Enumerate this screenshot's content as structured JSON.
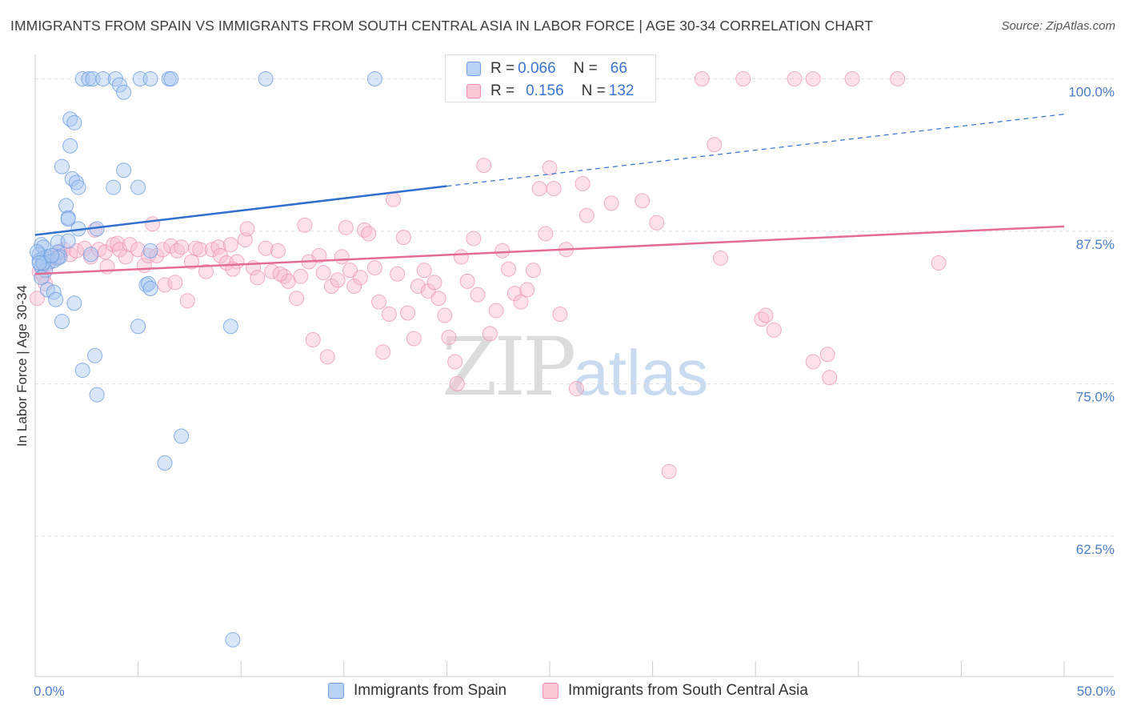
{
  "title": "IMMIGRANTS FROM SPAIN VS IMMIGRANTS FROM SOUTH CENTRAL ASIA IN LABOR FORCE | AGE 30-34 CORRELATION CHART",
  "source": "Source: ZipAtlas.com",
  "watermark": {
    "zip": "ZIP",
    "atlas": "atlas"
  },
  "colors": {
    "blue_fill": "#a9c7f0",
    "blue_stroke": "#6d9ee3",
    "blue_line": "#2f6fd0",
    "pink_fill": "#f8bdd0",
    "pink_stroke": "#ec8fad",
    "pink_line": "#e46b95",
    "grid": "#dddddd",
    "tick_text": "#4a7cc9"
  },
  "legend": {
    "rows": [
      {
        "r_label": "R = ",
        "r_value": "0.066",
        "n_label": "N = ",
        "n_value": "66",
        "series": "blue"
      },
      {
        "r_label": "R = ",
        "r_value": "0.156",
        "n_label": "N = ",
        "n_value": "132",
        "series": "pink"
      }
    ]
  },
  "bottom_legend": {
    "spain": "Immigrants from Spain",
    "asia": "Immigrants from South Central Asia"
  },
  "chart_data": {
    "type": "scatter",
    "title": "IMMIGRANTS FROM SPAIN VS IMMIGRANTS FROM SOUTH CENTRAL ASIA IN LABOR FORCE | AGE 30-34 CORRELATION CHART",
    "ylabel": "In Labor Force | Age 30-34",
    "xlabel": "",
    "xlim": [
      0,
      50
    ],
    "ylim": [
      51,
      102
    ],
    "x_ticks": [
      {
        "value": 0,
        "label": "0.0%"
      },
      {
        "value": 50,
        "label": "50.0%"
      }
    ],
    "x_minor_ticks": [
      0,
      5,
      10,
      15,
      20,
      25,
      30,
      35,
      40,
      45,
      50
    ],
    "y_ticks": [
      {
        "value": 100,
        "label": "100.0%"
      },
      {
        "value": 87.5,
        "label": "87.5%"
      },
      {
        "value": 75,
        "label": "75.0%"
      },
      {
        "value": 62.5,
        "label": "62.5%"
      }
    ],
    "grid": true,
    "series": [
      {
        "name": "Immigrants from Spain",
        "color": "blue",
        "trend": {
          "x0": 0,
          "y0": 87.2,
          "x1": 20,
          "y1": 91.2,
          "dash_x1": 50,
          "dash_y1": 97.1
        },
        "points": [
          [
            2.3,
            100
          ],
          [
            2.6,
            100
          ],
          [
            2.8,
            100
          ],
          [
            3.3,
            100
          ],
          [
            3.9,
            100
          ],
          [
            5.1,
            100
          ],
          [
            5.6,
            100
          ],
          [
            6.5,
            100
          ],
          [
            6.6,
            100
          ],
          [
            11.2,
            100
          ],
          [
            16.5,
            100
          ],
          [
            4.1,
            99.5
          ],
          [
            4.3,
            98.9
          ],
          [
            1.7,
            96.7
          ],
          [
            1.9,
            96.4
          ],
          [
            1.7,
            94.5
          ],
          [
            4.3,
            92.5
          ],
          [
            1.3,
            92.8
          ],
          [
            1.8,
            91.8
          ],
          [
            2.0,
            91.5
          ],
          [
            2.1,
            91.1
          ],
          [
            3.8,
            91.1
          ],
          [
            5.0,
            91.1
          ],
          [
            1.5,
            89.6
          ],
          [
            1.6,
            88.6
          ],
          [
            1.6,
            88.5
          ],
          [
            2.1,
            87.7
          ],
          [
            3.0,
            87.7
          ],
          [
            0.3,
            86.4
          ],
          [
            0.4,
            86.2
          ],
          [
            1.1,
            86.6
          ],
          [
            1.6,
            86.7
          ],
          [
            0.2,
            85.6
          ],
          [
            0.4,
            85.3
          ],
          [
            0.6,
            85.4
          ],
          [
            0.7,
            85.0
          ],
          [
            0.9,
            85.1
          ],
          [
            1.1,
            85.8
          ],
          [
            1.2,
            85.4
          ],
          [
            2.7,
            85.6
          ],
          [
            0.2,
            85.1
          ],
          [
            0.3,
            84.6
          ],
          [
            0.5,
            84.3
          ],
          [
            0.4,
            84.9
          ],
          [
            5.6,
            85.9
          ],
          [
            1.1,
            85.3
          ],
          [
            5.4,
            83.1
          ],
          [
            5.5,
            83.2
          ],
          [
            5.6,
            82.8
          ],
          [
            0.3,
            83.7
          ],
          [
            0.6,
            82.7
          ],
          [
            0.9,
            82.5
          ],
          [
            1.0,
            81.9
          ],
          [
            1.9,
            81.6
          ],
          [
            1.3,
            80.1
          ],
          [
            5.0,
            79.7
          ],
          [
            9.5,
            79.7
          ],
          [
            2.9,
            77.3
          ],
          [
            2.3,
            76.1
          ],
          [
            3.0,
            74.1
          ],
          [
            7.1,
            70.7
          ],
          [
            6.3,
            68.5
          ],
          [
            9.6,
            54.0
          ],
          [
            0.1,
            85.8
          ],
          [
            0.2,
            84.9
          ],
          [
            0.8,
            85.5
          ]
        ]
      },
      {
        "name": "Immigrants from South Central Asia",
        "color": "pink",
        "trend": {
          "x0": 0,
          "y0": 84.0,
          "x1": 50,
          "y1": 87.9
        },
        "points": [
          [
            0.1,
            82.0
          ],
          [
            0.2,
            84.2
          ],
          [
            0.4,
            83.8
          ],
          [
            0.6,
            84.8
          ],
          [
            0.8,
            85.3
          ],
          [
            1.1,
            85.4
          ],
          [
            1.4,
            86.0
          ],
          [
            1.7,
            85.6
          ],
          [
            2.0,
            85.9
          ],
          [
            2.4,
            86.1
          ],
          [
            2.7,
            85.4
          ],
          [
            2.9,
            87.6
          ],
          [
            3.1,
            86.0
          ],
          [
            3.4,
            85.8
          ],
          [
            3.8,
            86.4
          ],
          [
            4.0,
            86.5
          ],
          [
            4.1,
            86.0
          ],
          [
            4.4,
            85.4
          ],
          [
            4.6,
            86.4
          ],
          [
            5.0,
            86.0
          ],
          [
            5.3,
            84.7
          ],
          [
            5.5,
            85.5
          ],
          [
            5.7,
            88.1
          ],
          [
            5.9,
            85.5
          ],
          [
            6.2,
            86.0
          ],
          [
            6.3,
            83.1
          ],
          [
            6.6,
            86.3
          ],
          [
            6.9,
            85.9
          ],
          [
            7.1,
            86.2
          ],
          [
            7.4,
            81.8
          ],
          [
            7.6,
            85.0
          ],
          [
            7.8,
            86.1
          ],
          [
            8.0,
            86.0
          ],
          [
            8.3,
            84.2
          ],
          [
            8.6,
            86.0
          ],
          [
            8.9,
            86.2
          ],
          [
            9.0,
            85.5
          ],
          [
            9.3,
            84.9
          ],
          [
            9.5,
            86.4
          ],
          [
            9.8,
            85.0
          ],
          [
            10.2,
            86.8
          ],
          [
            10.3,
            87.7
          ],
          [
            10.6,
            84.5
          ],
          [
            10.8,
            83.7
          ],
          [
            11.2,
            86.1
          ],
          [
            11.5,
            84.2
          ],
          [
            11.8,
            85.9
          ],
          [
            12.1,
            83.8
          ],
          [
            12.3,
            83.4
          ],
          [
            12.7,
            82.0
          ],
          [
            12.9,
            83.8
          ],
          [
            13.1,
            88.0
          ],
          [
            13.3,
            85.0
          ],
          [
            13.5,
            78.6
          ],
          [
            13.8,
            85.5
          ],
          [
            14.0,
            84.1
          ],
          [
            14.2,
            77.2
          ],
          [
            14.4,
            83.0
          ],
          [
            14.7,
            83.5
          ],
          [
            14.9,
            85.4
          ],
          [
            15.1,
            87.8
          ],
          [
            15.3,
            84.3
          ],
          [
            15.5,
            83.0
          ],
          [
            15.8,
            83.7
          ],
          [
            16.0,
            87.6
          ],
          [
            16.2,
            87.3
          ],
          [
            16.5,
            84.5
          ],
          [
            16.7,
            81.7
          ],
          [
            16.9,
            77.6
          ],
          [
            17.2,
            80.7
          ],
          [
            17.4,
            90.1
          ],
          [
            17.6,
            84.0
          ],
          [
            17.9,
            87.0
          ],
          [
            18.1,
            80.8
          ],
          [
            18.4,
            78.7
          ],
          [
            18.6,
            83.0
          ],
          [
            18.9,
            84.3
          ],
          [
            19.1,
            82.6
          ],
          [
            19.4,
            83.3
          ],
          [
            19.6,
            82.0
          ],
          [
            19.9,
            80.6
          ],
          [
            20.1,
            78.8
          ],
          [
            20.4,
            76.8
          ],
          [
            20.5,
            75.0
          ],
          [
            20.7,
            85.4
          ],
          [
            21.0,
            83.4
          ],
          [
            21.3,
            86.9
          ],
          [
            21.5,
            82.3
          ],
          [
            21.8,
            92.9
          ],
          [
            22.1,
            79.1
          ],
          [
            22.4,
            81.0
          ],
          [
            22.7,
            85.9
          ],
          [
            23.0,
            84.4
          ],
          [
            23.3,
            82.4
          ],
          [
            23.6,
            81.7
          ],
          [
            23.9,
            82.7
          ],
          [
            24.2,
            84.3
          ],
          [
            24.5,
            91.0
          ],
          [
            24.8,
            87.3
          ],
          [
            25.0,
            92.7
          ],
          [
            25.2,
            91.0
          ],
          [
            25.5,
            80.7
          ],
          [
            25.8,
            86.0
          ],
          [
            26.3,
            74.6
          ],
          [
            26.6,
            91.4
          ],
          [
            26.8,
            88.8
          ],
          [
            28.0,
            89.8
          ],
          [
            29.5,
            90.0
          ],
          [
            30.2,
            88.2
          ],
          [
            30.8,
            67.8
          ],
          [
            32.4,
            100
          ],
          [
            33.0,
            94.6
          ],
          [
            33.3,
            85.3
          ],
          [
            34.4,
            100
          ],
          [
            35.3,
            80.3
          ],
          [
            35.5,
            80.6
          ],
          [
            35.9,
            79.4
          ],
          [
            36.9,
            100
          ],
          [
            37.8,
            100
          ],
          [
            37.8,
            76.8
          ],
          [
            38.5,
            77.4
          ],
          [
            38.6,
            75.5
          ],
          [
            39.7,
            100
          ],
          [
            41.9,
            100
          ],
          [
            43.9,
            84.9
          ],
          [
            0.3,
            84.6
          ],
          [
            0.5,
            83.2
          ],
          [
            1.2,
            85.8
          ],
          [
            3.5,
            84.6
          ],
          [
            6.8,
            83.3
          ],
          [
            9.6,
            84.4
          ],
          [
            11.9,
            84.0
          ]
        ]
      }
    ]
  }
}
